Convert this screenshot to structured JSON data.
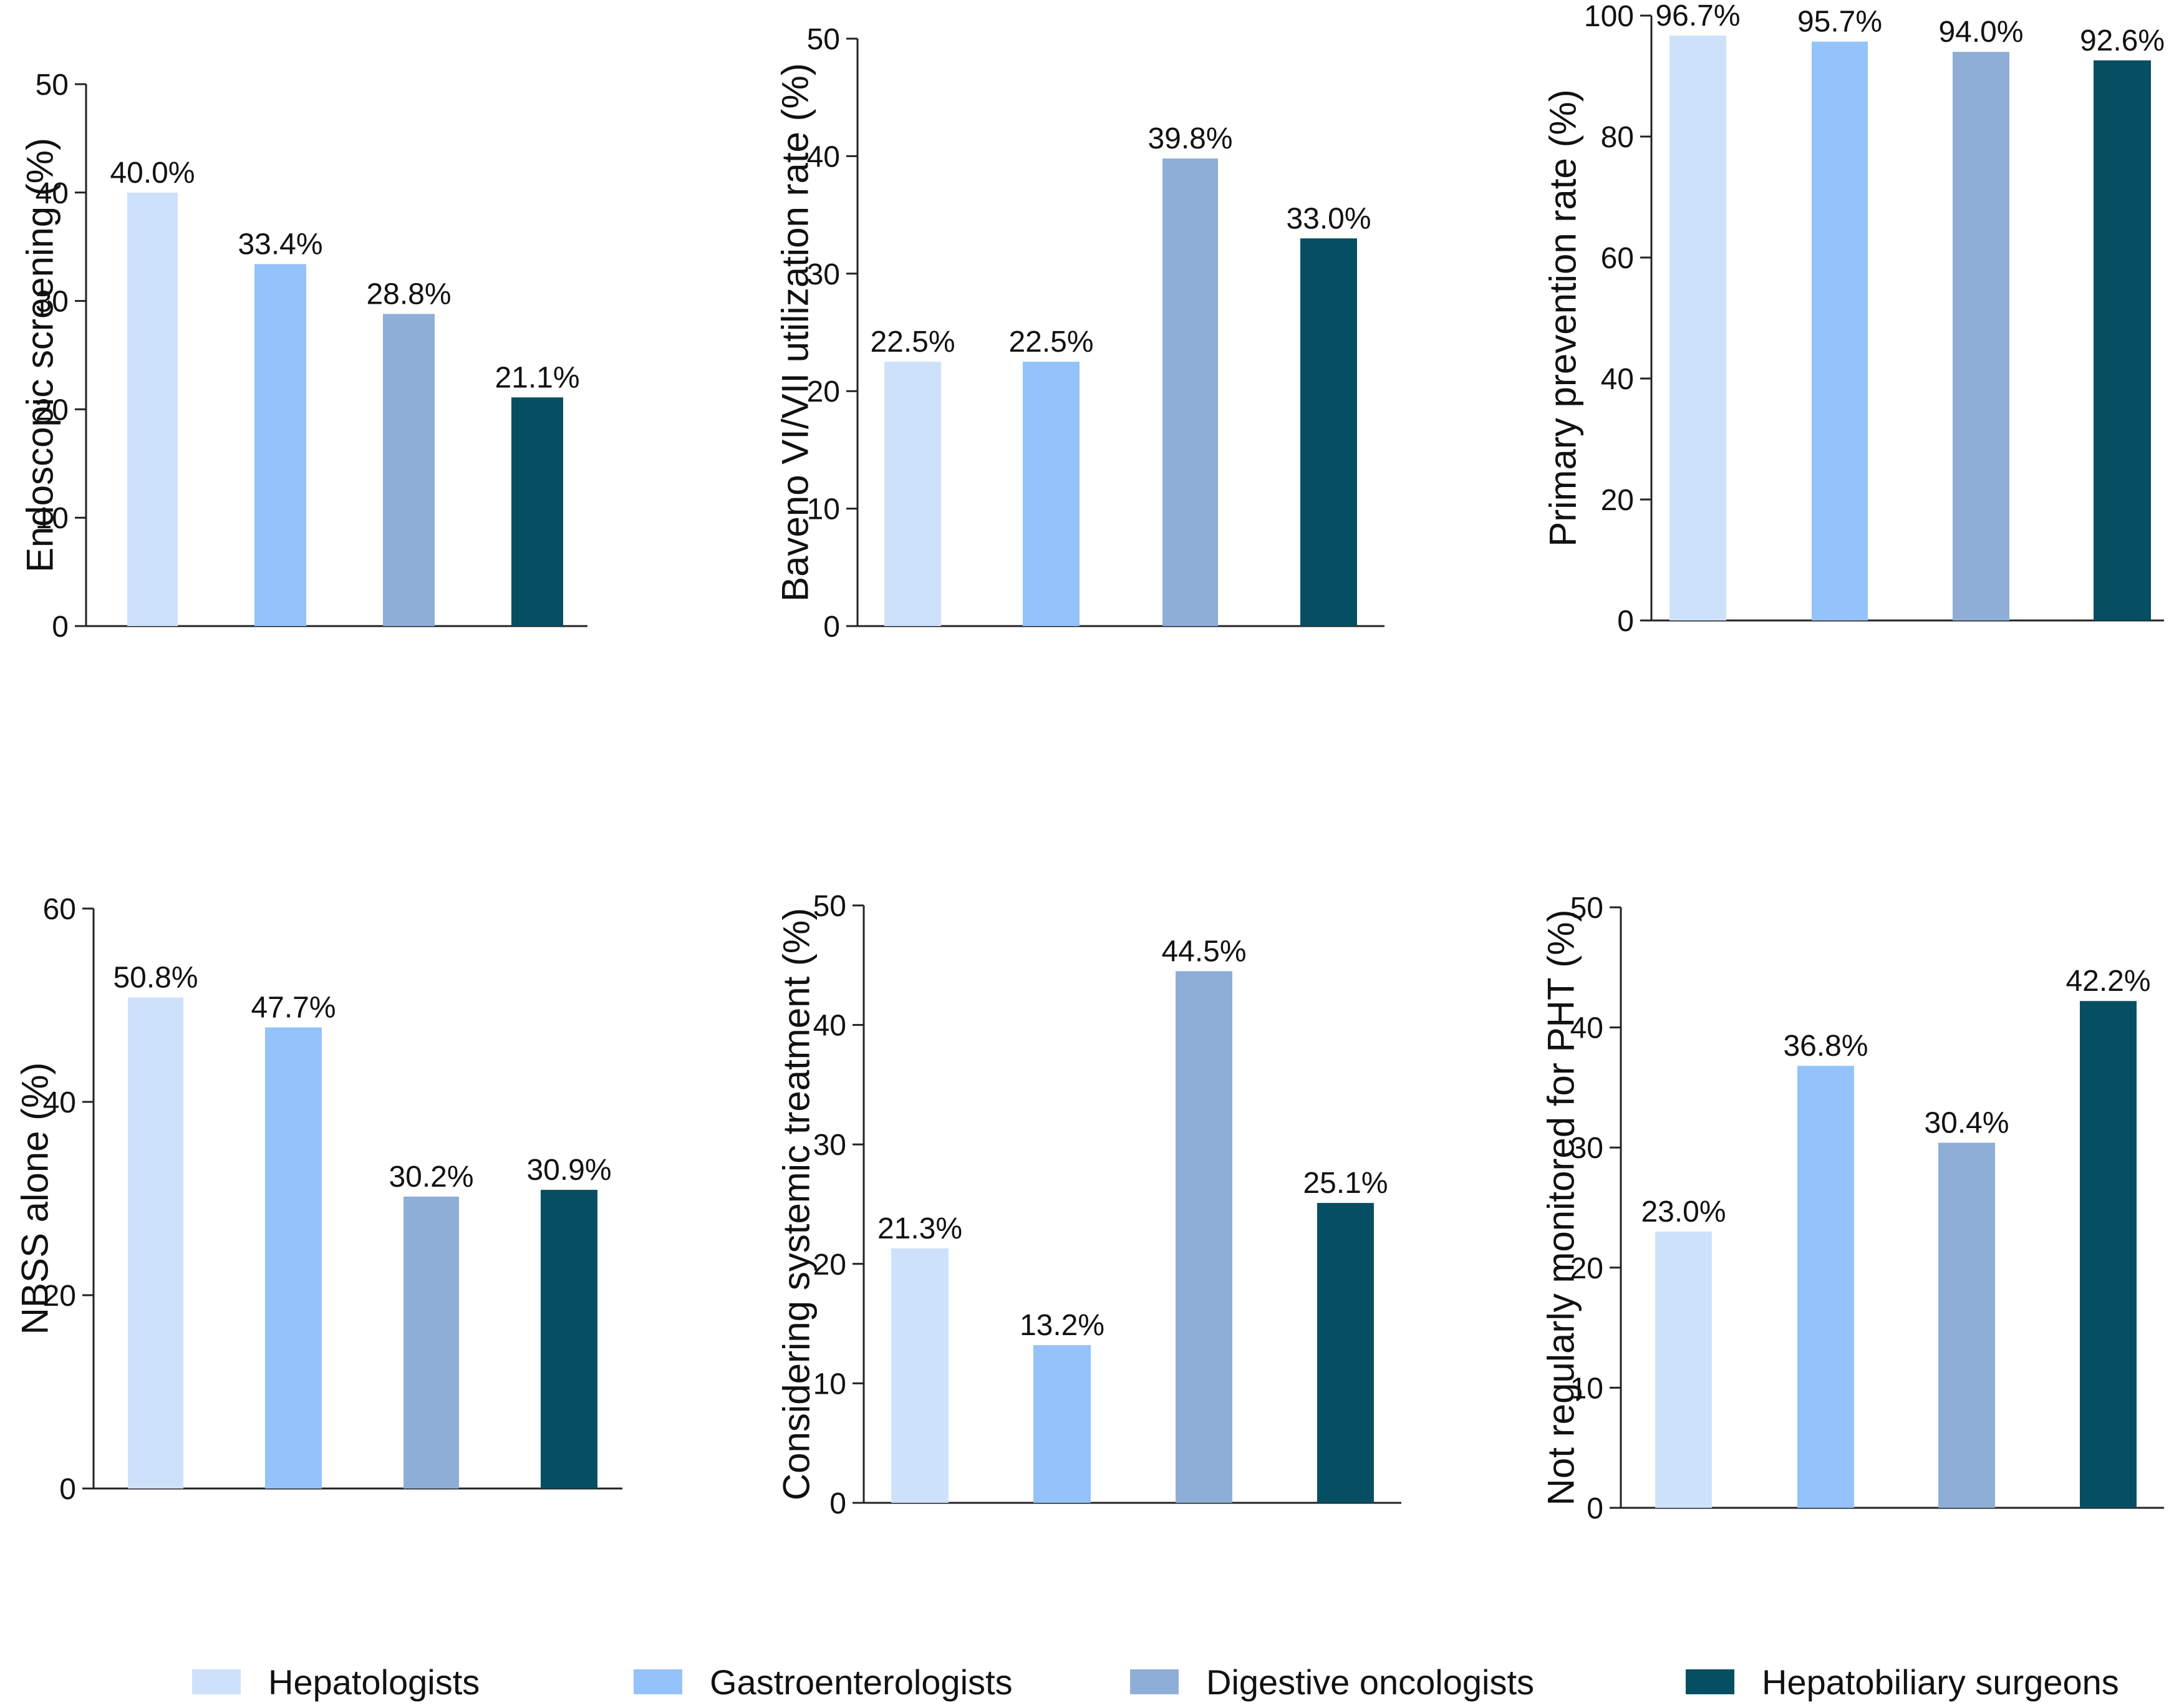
{
  "colors": {
    "hepatologists": "#cde2fa",
    "gastroenterologists": "#94c2fb",
    "digestive_oncologists": "#8eaed7",
    "hepatobiliary_surgeons": "#064f63",
    "axis": "#222222",
    "text": "#111111"
  },
  "legend": [
    {
      "label": "Hepatologists",
      "color": "#cde2fa"
    },
    {
      "label": "Gastroenterologists",
      "color": "#94c2fb"
    },
    {
      "label": "Digestive oncologists",
      "color": "#8eaed7"
    },
    {
      "label": "Hepatobiliary surgeons",
      "color": "#064f63"
    }
  ],
  "chart_data": [
    {
      "type": "bar",
      "title": "",
      "xlabel": "",
      "ylabel": "Endoscopic screening (%)",
      "categories": [
        "Hepatologists",
        "Gastroenterologists",
        "Digestive oncologists",
        "Hepatobiliary surgeons"
      ],
      "values": [
        40.0,
        33.4,
        28.8,
        21.1
      ],
      "data_labels": [
        "40.0%",
        "33.4%",
        "28.8%",
        "21.1%"
      ],
      "ylim": [
        0,
        50
      ],
      "yticks": [
        0,
        10,
        20,
        30,
        40,
        50
      ],
      "grid": false
    },
    {
      "type": "bar",
      "title": "",
      "xlabel": "",
      "ylabel": "Baveno VI/VII utilization rate (%)",
      "categories": [
        "Hepatologists",
        "Gastroenterologists",
        "Digestive oncologists",
        "Hepatobiliary surgeons"
      ],
      "values": [
        22.5,
        22.5,
        39.8,
        33.0
      ],
      "data_labels": [
        "22.5%",
        "22.5%",
        "39.8%",
        "33.0%"
      ],
      "ylim": [
        0,
        50
      ],
      "yticks": [
        0,
        10,
        20,
        30,
        40,
        50
      ],
      "grid": false
    },
    {
      "type": "bar",
      "title": "",
      "xlabel": "",
      "ylabel": "Primary prevention rate (%)",
      "categories": [
        "Hepatologists",
        "Gastroenterologists",
        "Digestive oncologists",
        "Hepatobiliary surgeons"
      ],
      "values": [
        96.7,
        95.7,
        94.0,
        92.6
      ],
      "data_labels": [
        "96.7%",
        "95.7%",
        "94.0%",
        "92.6%"
      ],
      "ylim": [
        0,
        100
      ],
      "yticks": [
        0,
        20,
        40,
        60,
        80,
        100
      ],
      "grid": false
    },
    {
      "type": "bar",
      "title": "",
      "xlabel": "",
      "ylabel": "NBSS alone (%)",
      "categories": [
        "Hepatologists",
        "Gastroenterologists",
        "Digestive oncologists",
        "Hepatobiliary surgeons"
      ],
      "values": [
        50.8,
        47.7,
        30.2,
        30.9
      ],
      "data_labels": [
        "50.8%",
        "47.7%",
        "30.2%",
        "30.9%"
      ],
      "ylim": [
        0,
        60
      ],
      "yticks": [
        0,
        20,
        40,
        60
      ],
      "grid": false
    },
    {
      "type": "bar",
      "title": "",
      "xlabel": "",
      "ylabel": "Considering systemic treatment (%)",
      "categories": [
        "Hepatologists",
        "Gastroenterologists",
        "Digestive oncologists",
        "Hepatobiliary surgeons"
      ],
      "values": [
        21.3,
        13.2,
        44.5,
        25.1
      ],
      "data_labels": [
        "21.3%",
        "13.2%",
        "44.5%",
        "25.1%"
      ],
      "ylim": [
        0,
        50
      ],
      "yticks": [
        0,
        10,
        20,
        30,
        40,
        50
      ],
      "grid": false
    },
    {
      "type": "bar",
      "title": "",
      "xlabel": "",
      "ylabel": "Not regularly monitored for PHT (%)",
      "categories": [
        "Hepatologists",
        "Gastroenterologists",
        "Digestive oncologists",
        "Hepatobiliary surgeons"
      ],
      "values": [
        23.0,
        36.8,
        30.4,
        42.2
      ],
      "data_labels": [
        "23.0%",
        "36.8%",
        "30.4%",
        "42.2%"
      ],
      "ylim": [
        0,
        50
      ],
      "yticks": [
        0,
        10,
        20,
        30,
        40,
        50
      ],
      "grid": false
    }
  ]
}
